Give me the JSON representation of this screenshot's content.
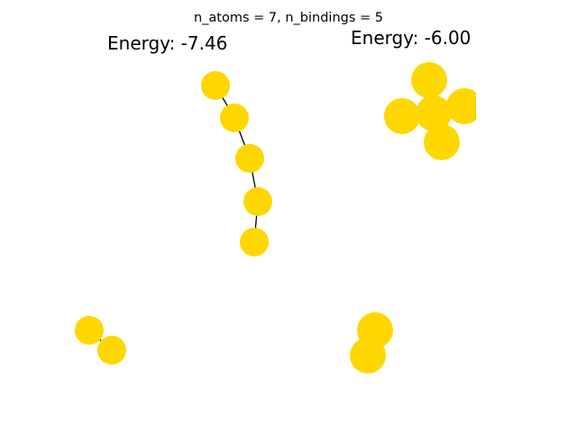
{
  "figure": {
    "title": "n_atoms = 7, n_bindings = 5"
  },
  "panels": [
    {
      "energy_label": "Energy: -7.46"
    },
    {
      "energy_label": "Energy: -6.00"
    }
  ],
  "colors": {
    "atom": "#FFD700",
    "bond": "#000000",
    "background": "#FFFFFF"
  }
}
